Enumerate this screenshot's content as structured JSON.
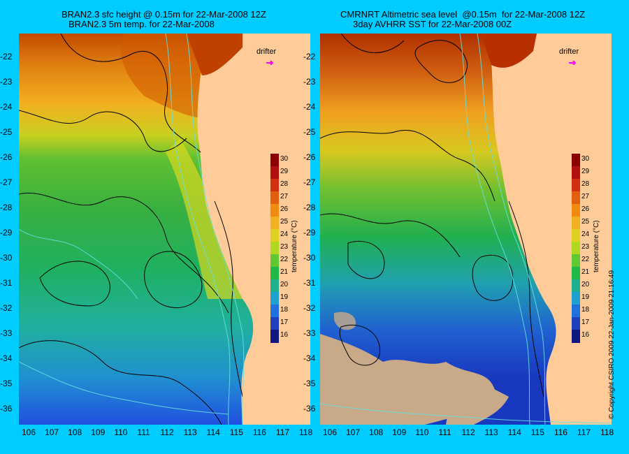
{
  "left_panel": {
    "title_line1": "BRAN2.3 sfc height @ 0.15m for 22-Mar-2008 12Z",
    "title_line2": "BRAN2.3 5m temp. for 22-Mar-2008",
    "drifter_label": "drifter"
  },
  "right_panel": {
    "title_line1": "CMRNRT Altimetric sea level  @0.15m  for 22-Mar-2008 12Z",
    "title_line2": "3day AVHRR SST for 22-Mar-2008 00Z",
    "drifter_label": "drifter"
  },
  "colorbar": {
    "label": "temperature (°C)",
    "ticks": [
      "30",
      "29",
      "28",
      "27",
      "26",
      "25",
      "24",
      "23",
      "22",
      "21",
      "20",
      "19",
      "18",
      "17",
      "16"
    ],
    "range": [
      15.5,
      30.5
    ]
  },
  "lat_ticks": [
    "-22",
    "-23",
    "-24",
    "-25",
    "-26",
    "-27",
    "-28",
    "-29",
    "-30",
    "-31",
    "-32",
    "-33",
    "-34",
    "-35",
    "-36"
  ],
  "lon_ticks": [
    "106",
    "107",
    "108",
    "109",
    "110",
    "111",
    "112",
    "113",
    "114",
    "115",
    "116",
    "117",
    "118"
  ],
  "copyright": "© Copyright CSIRO 2009   22-Jan-2009 21:16:49",
  "colors": {
    "background": "#00ccff",
    "land": "#ffcc99",
    "drifter": "#ff00ff",
    "contour": "#000000",
    "bathymetry": "#66e0e0"
  }
}
